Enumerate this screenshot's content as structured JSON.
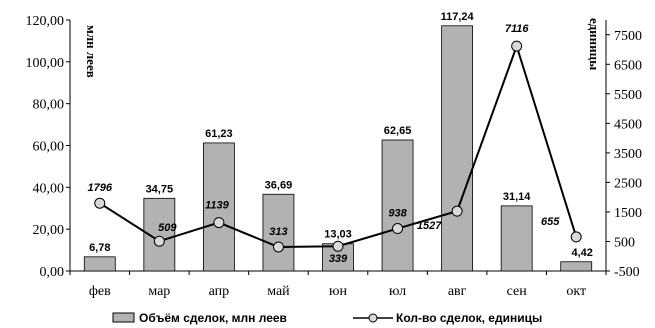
{
  "chart_data": {
    "type": "bar+line",
    "categories": [
      "фев",
      "мар",
      "апр",
      "май",
      "юн",
      "юл",
      "авг",
      "сен",
      "окт"
    ],
    "y_left": {
      "label": "млн леев",
      "lim": [
        0,
        120
      ],
      "ticks": [
        "0,00",
        "20,00",
        "40,00",
        "60,00",
        "80,00",
        "100,00",
        "120,00"
      ],
      "tick_values": [
        0,
        20,
        40,
        60,
        80,
        100,
        120
      ]
    },
    "y_right": {
      "label": "единицы",
      "lim": [
        -500,
        8000
      ],
      "ticks": [
        "-500",
        "500",
        "1500",
        "2500",
        "3500",
        "4500",
        "5500",
        "6500",
        "7500"
      ],
      "tick_values": [
        -500,
        500,
        1500,
        2500,
        3500,
        4500,
        5500,
        6500,
        7500
      ]
    },
    "series": [
      {
        "name": "Объём сделок, млн леев",
        "kind": "bar",
        "axis": "left",
        "values": [
          6.78,
          34.75,
          61.23,
          36.69,
          13.03,
          62.65,
          117.24,
          31.14,
          4.42
        ],
        "labels": [
          "6,78",
          "34,75",
          "61,23",
          "36,69",
          "13,03",
          "62,65",
          "117,24",
          "31,14",
          "4,42"
        ],
        "color": "#b2b2b2"
      },
      {
        "name": "Кол-во сделок, единицы",
        "kind": "line",
        "axis": "right",
        "values": [
          1796,
          509,
          1139,
          313,
          339,
          938,
          1527,
          7116,
          655
        ],
        "labels": [
          "1796",
          "509",
          "1139",
          "313",
          "339",
          "938",
          "1527",
          "7116",
          "655"
        ],
        "color": "#000000"
      }
    ],
    "legend_position": "bottom",
    "grid": false
  }
}
